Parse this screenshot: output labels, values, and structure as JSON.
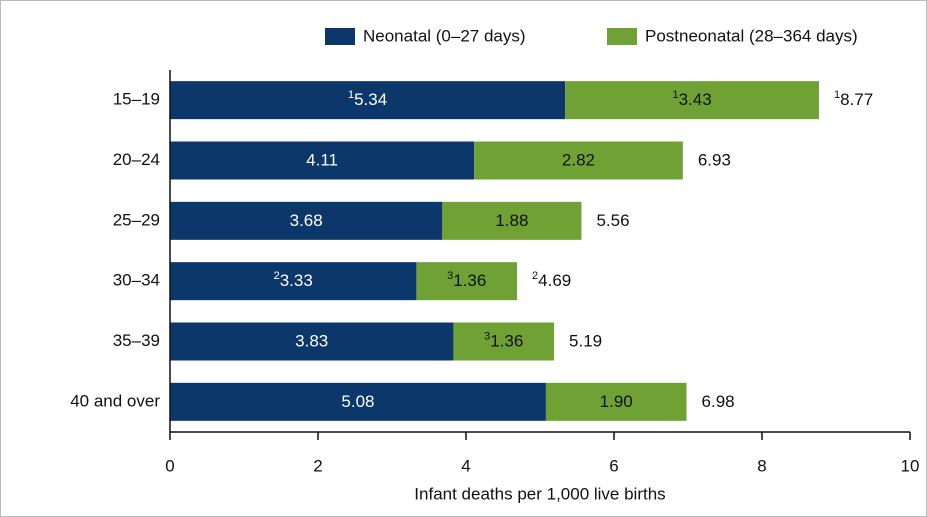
{
  "chart_data": {
    "type": "stacked-barh",
    "categories": [
      "15–19",
      "20–24",
      "25–29",
      "30–34",
      "35–39",
      "40 and over"
    ],
    "series": [
      {
        "name": "Neonatal (0–27 days)",
        "color": "#0b376a",
        "values": [
          5.34,
          4.11,
          3.68,
          3.33,
          3.83,
          5.08
        ],
        "notes": [
          "1",
          null,
          null,
          "2",
          null,
          null
        ]
      },
      {
        "name": "Postneonatal (28–364 days)",
        "color": "#6fa135",
        "values": [
          3.43,
          2.82,
          1.88,
          1.36,
          1.36,
          1.9
        ],
        "value_labels": [
          "3.43",
          "2.82",
          "1.88",
          "1.36",
          "1.36",
          "1.90"
        ],
        "notes": [
          "1",
          null,
          null,
          "3",
          "3",
          null
        ]
      }
    ],
    "totals": [
      8.77,
      6.93,
      5.56,
      4.69,
      5.19,
      6.98
    ],
    "total_notes": [
      "1",
      null,
      null,
      "2",
      null,
      null
    ],
    "xlabel": "Infant deaths per 1,000 live births",
    "xlim": [
      0,
      10
    ],
    "xticks": [
      0,
      2,
      4,
      6,
      8,
      10
    ],
    "legend": "top-right"
  }
}
